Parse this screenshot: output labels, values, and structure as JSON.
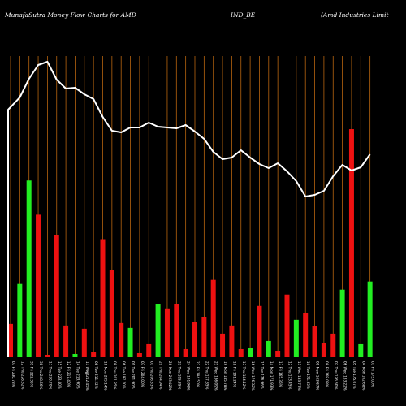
{
  "header": {
    "left": "MunafaSutra  Money Flow  Charts for AMD",
    "middle": "IND_BE",
    "right": "(Amd Industries Limit"
  },
  "colors": {
    "background": "#000000",
    "grid": "#b8650f",
    "line": "#ffffff",
    "up": "#22ee22",
    "down": "#ee1111"
  },
  "chart_data": {
    "type": "bar",
    "grid": true,
    "stray_label": "%",
    "categories": [
      "03 Fri 230.73%",
      "12 Thu 228.62%",
      "31 Fri 222.35%",
      "30 Thu 248.66%",
      "17 Thu 230.70%",
      "15 Tue 223.40%",
      "12 Fri 217.40%",
      "14 Tue 213.90%",
      "11 Wed 212.45%",
      "08 Tue 211.22%",
      "10 Mon 205.14%",
      "08 Thu 201.85%",
      "06 Tue 197.70%",
      "09 Tue 201.90%",
      "03 Fri 204.00%",
      "01 Thu 206.53%",
      "29 Thu 204.94%",
      "26 Mon 203.42%",
      "23 Thu 195.35%",
      "24 Wed 191.96%",
      "23 Fri 184.50%",
      "22 Thu 177.85%",
      "21 Wed 186.09%",
      "19 Mon 185.78%",
      "18 Fri 191.24%",
      "17 Thu 184.12%",
      "16 Wed 176.32%",
      "15 Tue 176.96%",
      "14 Mon 171.93%",
      "13 Fri 165.36%",
      "12 Thu 173.45%",
      "11 Wed 183.77%",
      "10 Tue 171.55%",
      "09 Mon 163.67%",
      "08 Fri 168.09%",
      "07 Thu 176.50%",
      "06 Wed 183.22%",
      "05 Tue 175.07%",
      "04 Mon 162.68%",
      "01 Fri 175.00%"
    ],
    "colors": [
      "red",
      "green",
      "green",
      "red",
      "red",
      "red",
      "red",
      "green",
      "red",
      "red",
      "red",
      "red",
      "red",
      "green",
      "red",
      "red",
      "green",
      "red",
      "red",
      "red",
      "red",
      "red",
      "red",
      "red",
      "red",
      "red",
      "green",
      "red",
      "green",
      "red",
      "red",
      "green",
      "red",
      "red",
      "red",
      "red",
      "green",
      "red",
      "green",
      "green"
    ],
    "values": [
      41,
      90,
      217,
      175,
      3,
      150,
      39,
      4,
      35,
      6,
      145,
      107,
      42,
      36,
      5,
      16,
      65,
      60,
      65,
      10,
      43,
      49,
      95,
      29,
      39,
      10,
      11,
      63,
      20,
      8,
      77,
      46,
      54,
      38,
      17,
      29,
      83,
      280,
      16,
      93
    ],
    "line": [
      135,
      120,
      97,
      80,
      76,
      98,
      109,
      108,
      116,
      122,
      144,
      161,
      163,
      157,
      157,
      151,
      156,
      157,
      158,
      154,
      162,
      171,
      187,
      196,
      194,
      185,
      194,
      202,
      207,
      201,
      211,
      223,
      242,
      240,
      235,
      217,
      203,
      210,
      206,
      190
    ],
    "ylim": [
      0,
      290
    ],
    "line_ylim": [
      0,
      500
    ]
  }
}
